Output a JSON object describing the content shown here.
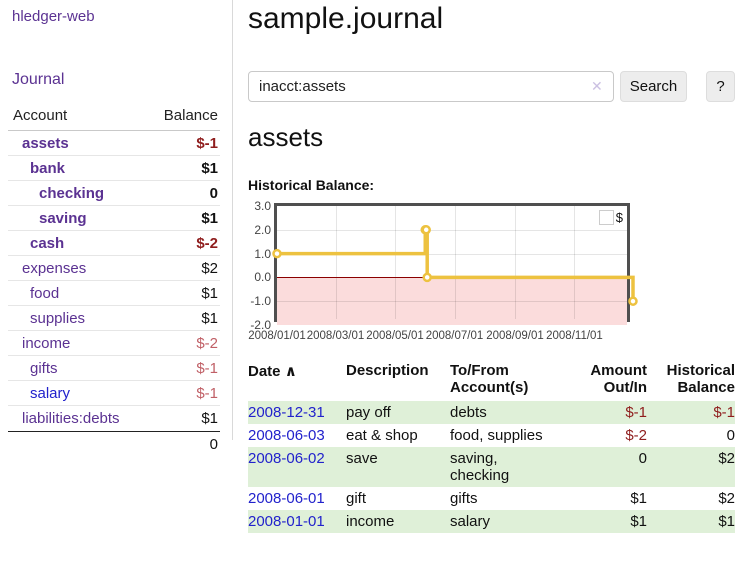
{
  "app": {
    "brand": "hledger-web",
    "nav_journal": "Journal"
  },
  "sidebar": {
    "header": {
      "account": "Account",
      "balance": "Balance"
    },
    "accounts": [
      {
        "name": "assets",
        "depth": 1,
        "bold": true,
        "name_color": "purple",
        "balance": "$-1",
        "tone": "neg"
      },
      {
        "name": "bank",
        "depth": 2,
        "bold": true,
        "name_color": "purple",
        "balance": "$1",
        "tone": "plain"
      },
      {
        "name": "checking",
        "depth": 3,
        "bold": true,
        "name_color": "purple",
        "balance": "0",
        "tone": "plain"
      },
      {
        "name": "saving",
        "depth": 3,
        "bold": true,
        "name_color": "purple",
        "balance": "$1",
        "tone": "plain"
      },
      {
        "name": "cash",
        "depth": 2,
        "bold": true,
        "name_color": "purple",
        "balance": "$-2",
        "tone": "neg"
      },
      {
        "name": "expenses",
        "depth": 1,
        "bold": false,
        "name_color": "purple",
        "balance": "$2",
        "tone": "plain"
      },
      {
        "name": "food",
        "depth": 2,
        "bold": false,
        "name_color": "purple",
        "balance": "$1",
        "tone": "plain"
      },
      {
        "name": "supplies",
        "depth": 2,
        "bold": false,
        "name_color": "purple",
        "balance": "$1",
        "tone": "plain"
      },
      {
        "name": "income",
        "depth": 1,
        "bold": false,
        "name_color": "purple",
        "balance": "$-2",
        "tone": "soft"
      },
      {
        "name": "gifts",
        "depth": 2,
        "bold": false,
        "name_color": "purple",
        "balance": "$-1",
        "tone": "soft"
      },
      {
        "name": "salary",
        "depth": 2,
        "bold": false,
        "name_color": "blue",
        "balance": "$-1",
        "tone": "soft"
      },
      {
        "name": "liabilities:debts",
        "depth": 1,
        "bold": false,
        "name_color": "purple",
        "balance": "$1",
        "tone": "plain"
      }
    ],
    "total": "0"
  },
  "main": {
    "title": "sample.journal",
    "search": {
      "value": "inacct:assets",
      "clear_icon": "✕",
      "search_label": "Search",
      "help_label": "?"
    },
    "account_heading": "assets",
    "chart_label": "Historical Balance:"
  },
  "chart_data": {
    "type": "line",
    "step": true,
    "title": "Historical Balance",
    "series": [
      {
        "name": "$",
        "points": [
          [
            "2008-01-01",
            1
          ],
          [
            "2008-06-01",
            2
          ],
          [
            "2008-06-02",
            2
          ],
          [
            "2008-06-03",
            0
          ],
          [
            "2008-12-31",
            -1
          ]
        ]
      }
    ],
    "xlim": [
      "2008-01-01",
      "2008-12-31"
    ],
    "ylim": [
      -2,
      3
    ],
    "y_ticks": [
      3,
      2,
      1,
      0,
      -1,
      -2
    ],
    "x_ticks": [
      "2008/01/01",
      "2008/03/01",
      "2008/05/01",
      "2008/07/01",
      "2008/09/01",
      "2008/11/01"
    ],
    "legend": {
      "position": "top-right",
      "label": "$"
    },
    "grid": true,
    "negative_region_shaded": true,
    "line_color": "#edc240",
    "zero_line_color": "#8b0000"
  },
  "register": {
    "headers": {
      "date": "Date",
      "sort_indicator": "∧",
      "description": "Description",
      "accounts": "To/From Account(s)",
      "amount": "Amount Out/In",
      "balance": "Historical Balance"
    },
    "rows": [
      {
        "date": "2008-12-31",
        "description": "pay off",
        "accounts": "debts",
        "amount": "$-1",
        "amount_tone": "neg",
        "balance": "$-1",
        "balance_tone": "neg",
        "highlighted": true
      },
      {
        "date": "2008-06-03",
        "description": "eat & shop",
        "accounts": "food, supplies",
        "amount": "$-2",
        "amount_tone": "neg",
        "balance": "0",
        "balance_tone": "plain",
        "highlighted": false
      },
      {
        "date": "2008-06-02",
        "description": "save",
        "accounts": "saving, checking",
        "amount": "0",
        "amount_tone": "plain",
        "balance": "$2",
        "balance_tone": "plain",
        "highlighted": true
      },
      {
        "date": "2008-06-01",
        "description": "gift",
        "accounts": "gifts",
        "amount": "$1",
        "amount_tone": "plain",
        "balance": "$2",
        "balance_tone": "plain",
        "highlighted": false
      },
      {
        "date": "2008-01-01",
        "description": "income",
        "accounts": "salary",
        "amount": "$1",
        "amount_tone": "plain",
        "balance": "$1",
        "balance_tone": "plain",
        "highlighted": true
      }
    ]
  },
  "colors": {
    "link_purple": "#5b3292",
    "link_blue": "#2222cc",
    "negative_dark": "#8f1d1d",
    "negative_soft": "#c05f66",
    "row_green": "#dff0d8",
    "chart_line": "#edc240",
    "chart_negative_fill": "#fbdcdc",
    "zero_line": "#8b0000",
    "button_bg": "#ededed"
  }
}
